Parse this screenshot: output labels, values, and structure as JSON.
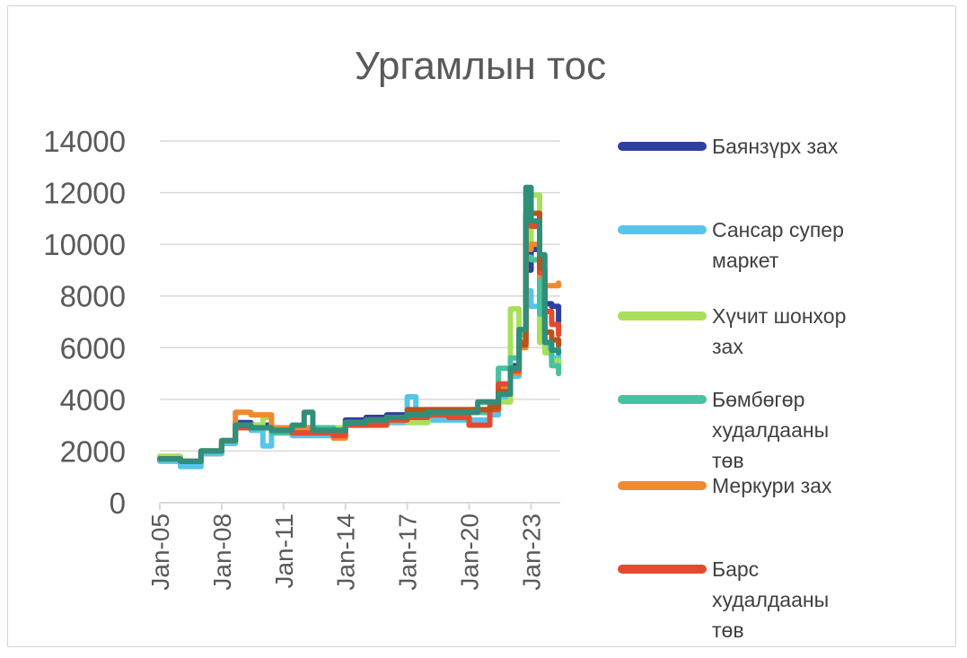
{
  "chart_data": {
    "type": "line",
    "title": "Ургамлын тос",
    "xlabel": "",
    "ylabel": "",
    "ylim": [
      0,
      14000
    ],
    "yticks": [
      0,
      2000,
      4000,
      6000,
      8000,
      10000,
      12000,
      14000
    ],
    "xlim": [
      "2005-01",
      "2024-06"
    ],
    "xticks": [
      "2005-01",
      "2008-01",
      "2011-01",
      "2014-01",
      "2017-01",
      "2020-01",
      "2023-01"
    ],
    "xtick_labels": [
      "Jan-05",
      "Jan-08",
      "Jan-11",
      "Jan-14",
      "Jan-17",
      "Jan-20",
      "Jan-23"
    ],
    "grid": "horizontal",
    "legend": "right",
    "series": [
      {
        "name": "Баянзүрх зах",
        "color": "#2e3f9e",
        "points": [
          [
            "2005-01",
            1700
          ],
          [
            "2006-01",
            1500
          ],
          [
            "2007-01",
            1900
          ],
          [
            "2008-01",
            2300
          ],
          [
            "2008-09",
            3100
          ],
          [
            "2009-06",
            3000
          ],
          [
            "2010-06",
            2800
          ],
          [
            "2011-06",
            2800
          ],
          [
            "2012-06",
            2700
          ],
          [
            "2013-06",
            2700
          ],
          [
            "2014-01",
            3200
          ],
          [
            "2015-01",
            3300
          ],
          [
            "2016-01",
            3400
          ],
          [
            "2017-01",
            3500
          ],
          [
            "2018-01",
            3500
          ],
          [
            "2019-01",
            3500
          ],
          [
            "2020-01",
            3500
          ],
          [
            "2021-01",
            3700
          ],
          [
            "2021-06",
            4200
          ],
          [
            "2022-01",
            5300
          ],
          [
            "2022-06",
            6500
          ],
          [
            "2022-10",
            9000
          ],
          [
            "2023-01",
            9800
          ],
          [
            "2023-06",
            8300
          ],
          [
            "2023-09",
            7700
          ],
          [
            "2024-01",
            7600
          ],
          [
            "2024-05",
            7000
          ]
        ]
      },
      {
        "name": "Сансар супер маркет",
        "color": "#55c5ec",
        "points": [
          [
            "2005-01",
            1600
          ],
          [
            "2006-01",
            1400
          ],
          [
            "2007-01",
            1900
          ],
          [
            "2008-01",
            2300
          ],
          [
            "2008-09",
            2900
          ],
          [
            "2009-06",
            2800
          ],
          [
            "2010-01",
            2200
          ],
          [
            "2010-06",
            2800
          ],
          [
            "2011-06",
            2600
          ],
          [
            "2012-06",
            2600
          ],
          [
            "2013-06",
            2500
          ],
          [
            "2014-01",
            3000
          ],
          [
            "2015-01",
            3100
          ],
          [
            "2016-01",
            3100
          ],
          [
            "2017-01",
            4100
          ],
          [
            "2017-06",
            3300
          ],
          [
            "2018-01",
            3200
          ],
          [
            "2019-01",
            3200
          ],
          [
            "2020-01",
            3200
          ],
          [
            "2021-01",
            3400
          ],
          [
            "2021-06",
            4000
          ],
          [
            "2022-01",
            4900
          ],
          [
            "2022-06",
            6200
          ],
          [
            "2022-10",
            8200
          ],
          [
            "2023-01",
            7600
          ],
          [
            "2023-06",
            6600
          ],
          [
            "2023-09",
            6000
          ],
          [
            "2024-01",
            5600
          ],
          [
            "2024-05",
            6300
          ]
        ]
      },
      {
        "name": "Хүчит шонхор зах",
        "color": "#a8e05a",
        "points": [
          [
            "2005-01",
            1800
          ],
          [
            "2006-01",
            1600
          ],
          [
            "2007-01",
            2000
          ],
          [
            "2008-01",
            2400
          ],
          [
            "2008-09",
            2900
          ],
          [
            "2009-06",
            3000
          ],
          [
            "2010-01",
            3300
          ],
          [
            "2010-06",
            2900
          ],
          [
            "2011-06",
            2800
          ],
          [
            "2012-06",
            2900
          ],
          [
            "2013-06",
            2900
          ],
          [
            "2014-01",
            3100
          ],
          [
            "2015-01",
            3100
          ],
          [
            "2016-01",
            3200
          ],
          [
            "2017-01",
            3100
          ],
          [
            "2018-01",
            3500
          ],
          [
            "2019-01",
            3500
          ],
          [
            "2020-01",
            3600
          ],
          [
            "2021-01",
            3600
          ],
          [
            "2021-06",
            3900
          ],
          [
            "2022-01",
            7500
          ],
          [
            "2022-06",
            6400
          ],
          [
            "2022-10",
            10000
          ],
          [
            "2023-01",
            11900
          ],
          [
            "2023-06",
            6200
          ],
          [
            "2023-09",
            5800
          ],
          [
            "2024-01",
            5500
          ],
          [
            "2024-05",
            5300
          ]
        ]
      },
      {
        "name": "Бөмбөгөр худалдааны төв",
        "color": "#46c2a0",
        "points": [
          [
            "2005-01",
            1700
          ],
          [
            "2006-01",
            1600
          ],
          [
            "2007-01",
            2000
          ],
          [
            "2008-01",
            2400
          ],
          [
            "2008-09",
            3000
          ],
          [
            "2009-06",
            2900
          ],
          [
            "2010-06",
            2700
          ],
          [
            "2011-06",
            2800
          ],
          [
            "2012-06",
            2900
          ],
          [
            "2013-06",
            2800
          ],
          [
            "2014-01",
            3100
          ],
          [
            "2015-01",
            3100
          ],
          [
            "2016-01",
            3300
          ],
          [
            "2017-01",
            3400
          ],
          [
            "2018-01",
            3400
          ],
          [
            "2019-01",
            3400
          ],
          [
            "2020-01",
            3500
          ],
          [
            "2021-01",
            3800
          ],
          [
            "2021-06",
            5200
          ],
          [
            "2022-01",
            5600
          ],
          [
            "2022-06",
            6500
          ],
          [
            "2022-10",
            9500
          ],
          [
            "2023-01",
            9400
          ],
          [
            "2023-06",
            7300
          ],
          [
            "2023-09",
            6200
          ],
          [
            "2024-01",
            5300
          ],
          [
            "2024-05",
            5000
          ]
        ]
      },
      {
        "name": "Меркури зах",
        "color": "#f08a2e",
        "points": [
          [
            "2005-01",
            1700
          ],
          [
            "2006-01",
            1600
          ],
          [
            "2007-01",
            2000
          ],
          [
            "2008-01",
            2400
          ],
          [
            "2008-09",
            3500
          ],
          [
            "2009-06",
            3400
          ],
          [
            "2010-06",
            2900
          ],
          [
            "2011-06",
            2900
          ],
          [
            "2012-06",
            2800
          ],
          [
            "2013-06",
            2500
          ],
          [
            "2014-01",
            3100
          ],
          [
            "2015-01",
            3200
          ],
          [
            "2016-01",
            3300
          ],
          [
            "2017-01",
            3500
          ],
          [
            "2018-01",
            3600
          ],
          [
            "2019-01",
            3600
          ],
          [
            "2020-01",
            3600
          ],
          [
            "2021-01",
            3700
          ],
          [
            "2021-06",
            4400
          ],
          [
            "2022-01",
            5000
          ],
          [
            "2022-06",
            6000
          ],
          [
            "2022-10",
            9800
          ],
          [
            "2023-01",
            10000
          ],
          [
            "2023-06",
            8800
          ],
          [
            "2023-09",
            8400
          ],
          [
            "2024-01",
            8400
          ],
          [
            "2024-05",
            8500
          ]
        ]
      },
      {
        "name": "Барс худалдааны төв",
        "color": "#e64a2e",
        "points": [
          [
            "2005-01",
            1700
          ],
          [
            "2006-01",
            1600
          ],
          [
            "2007-01",
            2000
          ],
          [
            "2008-01",
            2400
          ],
          [
            "2008-09",
            2900
          ],
          [
            "2009-06",
            2900
          ],
          [
            "2010-06",
            2800
          ],
          [
            "2011-06",
            2700
          ],
          [
            "2012-06",
            2700
          ],
          [
            "2013-06",
            2600
          ],
          [
            "2014-01",
            3000
          ],
          [
            "2015-01",
            3000
          ],
          [
            "2016-01",
            3200
          ],
          [
            "2017-01",
            3300
          ],
          [
            "2018-01",
            3400
          ],
          [
            "2019-01",
            3300
          ],
          [
            "2020-01",
            3000
          ],
          [
            "2021-01",
            3600
          ],
          [
            "2021-06",
            4600
          ],
          [
            "2022-01",
            5100
          ],
          [
            "2022-06",
            6200
          ],
          [
            "2022-10",
            11200
          ],
          [
            "2023-01",
            10700
          ],
          [
            "2023-06",
            8900
          ],
          [
            "2023-09",
            7400
          ],
          [
            "2024-01",
            6900
          ],
          [
            "2024-05",
            6500
          ]
        ]
      },
      {
        "name": "",
        "color": "#b5541e",
        "points": [
          [
            "2014-01",
            3100
          ],
          [
            "2015-01",
            3200
          ],
          [
            "2016-01",
            3300
          ],
          [
            "2017-01",
            3600
          ],
          [
            "2018-01",
            3600
          ],
          [
            "2019-01",
            3600
          ],
          [
            "2020-01",
            3600
          ],
          [
            "2021-01",
            3700
          ],
          [
            "2021-06",
            4300
          ],
          [
            "2022-01",
            5200
          ],
          [
            "2022-06",
            6100
          ],
          [
            "2022-10",
            11000
          ],
          [
            "2023-01",
            11200
          ],
          [
            "2023-06",
            9100
          ],
          [
            "2023-09",
            6600
          ],
          [
            "2024-01",
            6300
          ],
          [
            "2024-05",
            6100
          ]
        ]
      },
      {
        "name": "",
        "color": "#2f8f7a",
        "points": [
          [
            "2005-01",
            1700
          ],
          [
            "2006-01",
            1600
          ],
          [
            "2007-01",
            2000
          ],
          [
            "2008-01",
            2400
          ],
          [
            "2008-09",
            3000
          ],
          [
            "2009-06",
            2900
          ],
          [
            "2010-06",
            2800
          ],
          [
            "2011-06",
            3000
          ],
          [
            "2012-01",
            3500
          ],
          [
            "2012-06",
            2800
          ],
          [
            "2013-06",
            2800
          ],
          [
            "2014-01",
            3100
          ],
          [
            "2015-01",
            3200
          ],
          [
            "2016-01",
            3300
          ],
          [
            "2017-01",
            3400
          ],
          [
            "2018-01",
            3500
          ],
          [
            "2019-01",
            3500
          ],
          [
            "2020-01",
            3500
          ],
          [
            "2020-06",
            3900
          ],
          [
            "2021-06",
            4200
          ],
          [
            "2022-01",
            5200
          ],
          [
            "2022-06",
            6700
          ],
          [
            "2022-10",
            12200
          ],
          [
            "2023-01",
            10900
          ],
          [
            "2023-06",
            9600
          ],
          [
            "2023-09",
            6200
          ],
          [
            "2024-01",
            5900
          ],
          [
            "2024-05",
            5800
          ]
        ]
      }
    ]
  }
}
